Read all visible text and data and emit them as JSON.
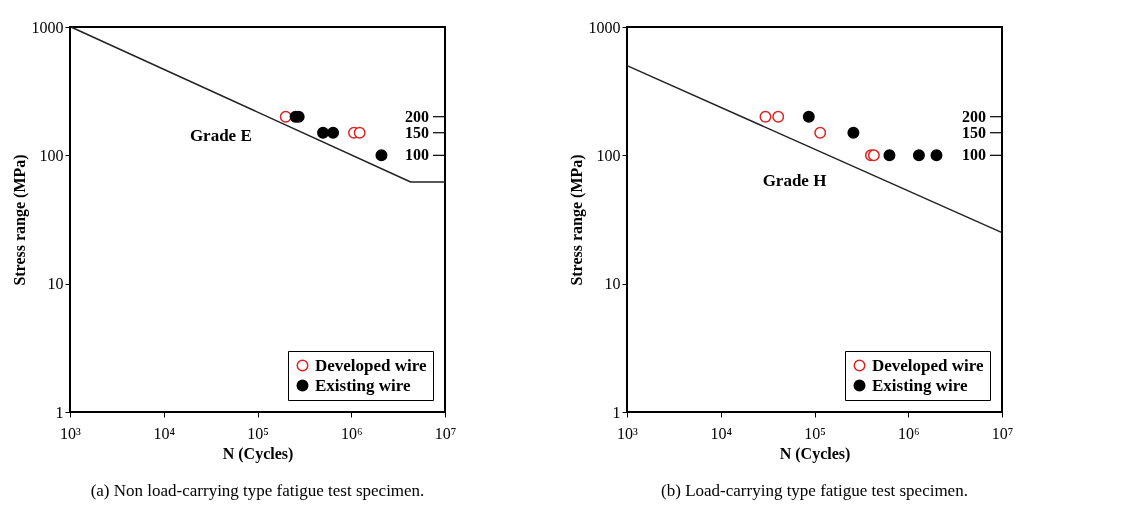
{
  "chart_data": [
    {
      "type": "scatter",
      "xlabel": "N (Cycles)",
      "ylabel": "Stress range (MPa)",
      "log": "xy",
      "legend": "bottom right",
      "grid": false,
      "marker": "circle",
      "xlim": [
        1000,
        10000000
      ],
      "xticks": [
        {
          "value": 1000,
          "label": "10³"
        },
        {
          "value": 10000,
          "label": "10⁴"
        },
        {
          "value": 100000,
          "label": "10⁵"
        },
        {
          "value": 1000000,
          "label": "10⁶"
        },
        {
          "value": 10000000,
          "label": "10⁷"
        }
      ],
      "ylim": [
        1,
        1000
      ],
      "yticks": [
        1,
        10,
        100,
        1000
      ],
      "ref_lines": [
        {
          "axis": "y",
          "value": 200,
          "label": "200"
        },
        {
          "axis": "y",
          "value": 150,
          "label": "150"
        },
        {
          "axis": "y",
          "value": 100,
          "label": "100"
        }
      ],
      "series": [
        {
          "name": "Developed wire",
          "color": "#dd2222",
          "x": [
            200000,
            1070000,
            1230000
          ],
          "values": [
            200,
            150,
            150
          ]
        },
        {
          "name": "Existing wire",
          "color": "#000000",
          "x": [
            255000,
            275000,
            500000,
            640000,
            2100000
          ],
          "values": [
            200,
            200,
            150,
            150,
            100
          ]
        },
        {
          "type": "line",
          "color": "#222222",
          "marker": "none",
          "line_style": "solid",
          "x": [
            1024,
            4300000,
            10000000
          ],
          "values": [
            1000,
            62,
            62
          ]
        }
      ],
      "annotations": [
        "Grade E",
        "(a) Non load-carrying type fatigue test specimen."
      ]
    },
    {
      "type": "scatter",
      "xlabel": "N (Cycles)",
      "ylabel": "Stress range (MPa)",
      "log": "xy",
      "legend": "bottom right",
      "grid": false,
      "marker": "circle",
      "xlim": [
        1000,
        10000000
      ],
      "xticks": [
        {
          "value": 1000,
          "label": "10³"
        },
        {
          "value": 10000,
          "label": "10⁴"
        },
        {
          "value": 100000,
          "label": "10⁵"
        },
        {
          "value": 1000000,
          "label": "10⁶"
        },
        {
          "value": 10000000,
          "label": "10⁷"
        }
      ],
      "ylim": [
        1,
        1000
      ],
      "yticks": [
        1,
        10,
        100,
        1000
      ],
      "ref_lines": [
        {
          "axis": "y",
          "value": 200,
          "label": "200"
        },
        {
          "axis": "y",
          "value": 150,
          "label": "150"
        },
        {
          "axis": "y",
          "value": 100,
          "label": "100"
        }
      ],
      "series": [
        {
          "name": "Developed wire",
          "color": "#dd2222",
          "x": [
            30000,
            41000,
            115000,
            400000,
            430000
          ],
          "values": [
            200,
            200,
            150,
            100,
            100
          ]
        },
        {
          "name": "Existing wire",
          "color": "#000000",
          "x": [
            87000,
            260000,
            630000,
            1300000,
            2000000
          ],
          "values": [
            200,
            150,
            100,
            100,
            100
          ]
        },
        {
          "type": "line",
          "color": "#222222",
          "marker": "none",
          "line_style": "solid",
          "x": [
            1000,
            10000000
          ],
          "values": [
            500,
            25
          ]
        }
      ],
      "annotations": [
        "Grade H",
        "(b) Load-carrying type fatigue test specimen."
      ]
    }
  ]
}
